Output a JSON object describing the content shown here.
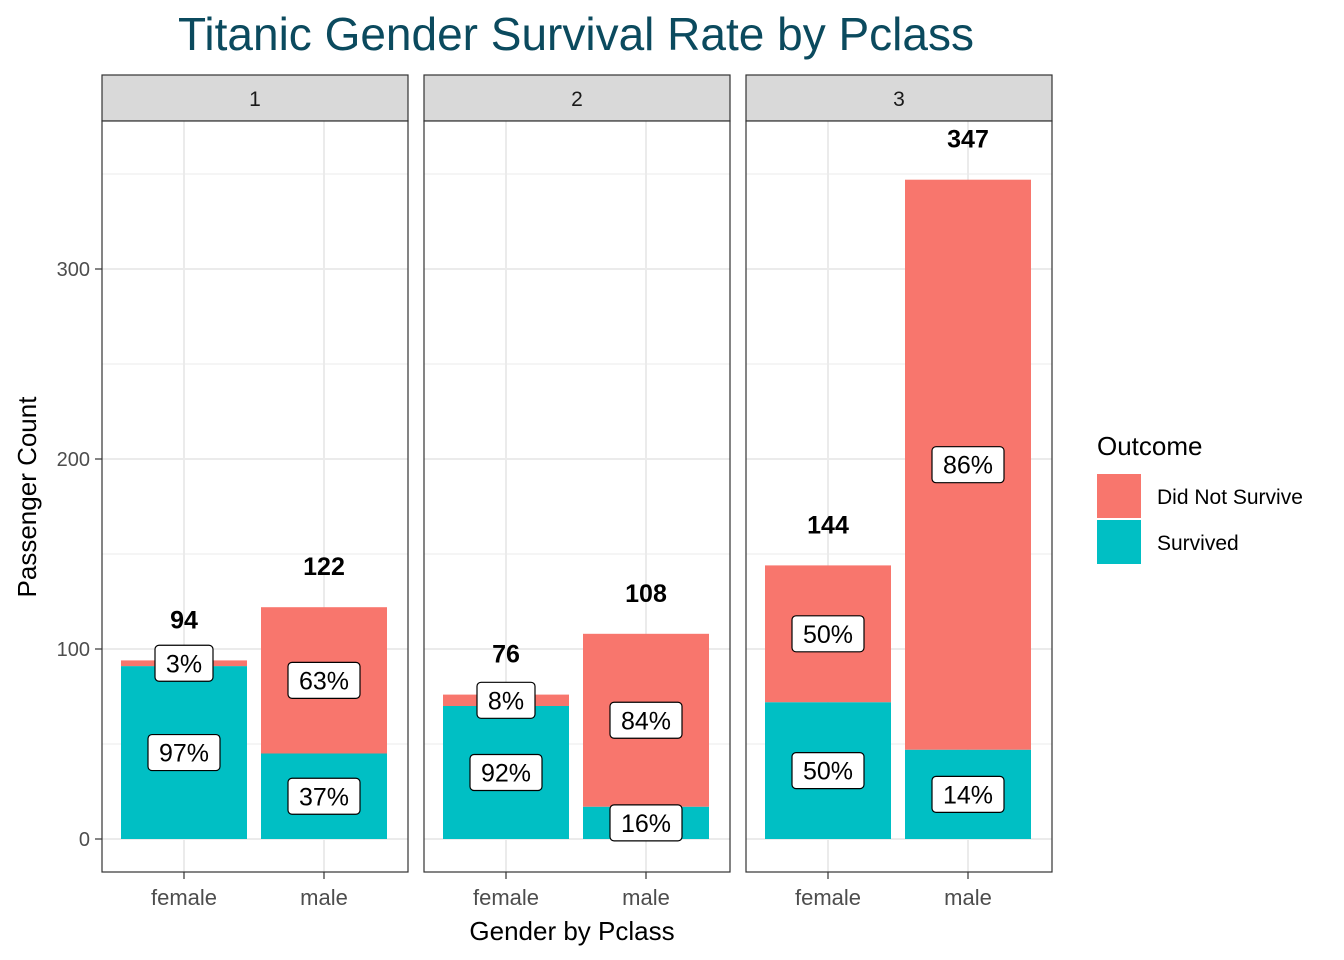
{
  "chart_data": {
    "type": "bar",
    "stacked": true,
    "facet_by": "Pclass",
    "title": "Titanic Gender Survival Rate by Pclass",
    "xlabel": "Gender by Pclass",
    "ylabel": "Passenger Count",
    "ylim": [
      0,
      365
    ],
    "y_ticks": [
      0,
      100,
      200,
      300
    ],
    "grid": true,
    "categories": [
      "female",
      "male"
    ],
    "facets": [
      {
        "label": "1",
        "bars": [
          {
            "category": "female",
            "survived": 91,
            "did_not_survive": 3,
            "total": 94,
            "total_label": "94",
            "survived_pct": "97%",
            "did_not_survive_pct": "3%"
          },
          {
            "category": "male",
            "survived": 45,
            "did_not_survive": 77,
            "total": 122,
            "total_label": "122",
            "survived_pct": "37%",
            "did_not_survive_pct": "63%"
          }
        ]
      },
      {
        "label": "2",
        "bars": [
          {
            "category": "female",
            "survived": 70,
            "did_not_survive": 6,
            "total": 76,
            "total_label": "76",
            "survived_pct": "92%",
            "did_not_survive_pct": "8%"
          },
          {
            "category": "male",
            "survived": 17,
            "did_not_survive": 91,
            "total": 108,
            "total_label": "108",
            "survived_pct": "16%",
            "did_not_survive_pct": "84%"
          }
        ]
      },
      {
        "label": "3",
        "bars": [
          {
            "category": "female",
            "survived": 72,
            "did_not_survive": 72,
            "total": 144,
            "total_label": "144",
            "survived_pct": "50%",
            "did_not_survive_pct": "50%"
          },
          {
            "category": "male",
            "survived": 47,
            "did_not_survive": 300,
            "total": 347,
            "total_label": "347",
            "survived_pct": "14%",
            "did_not_survive_pct": "86%"
          }
        ]
      }
    ],
    "legend": {
      "title": "Outcome",
      "placement": "right",
      "items": [
        {
          "key": "did_not_survive",
          "label": "Did Not Survive",
          "color": "#f8766d"
        },
        {
          "key": "survived",
          "label": "Survived",
          "color": "#00bfc4"
        }
      ]
    },
    "colors": {
      "did_not_survive": "#f8766d",
      "survived": "#00bfc4",
      "strip_fill": "#d9d9d9",
      "grid": "#ebebeb",
      "title": "#0b4a5e"
    }
  }
}
